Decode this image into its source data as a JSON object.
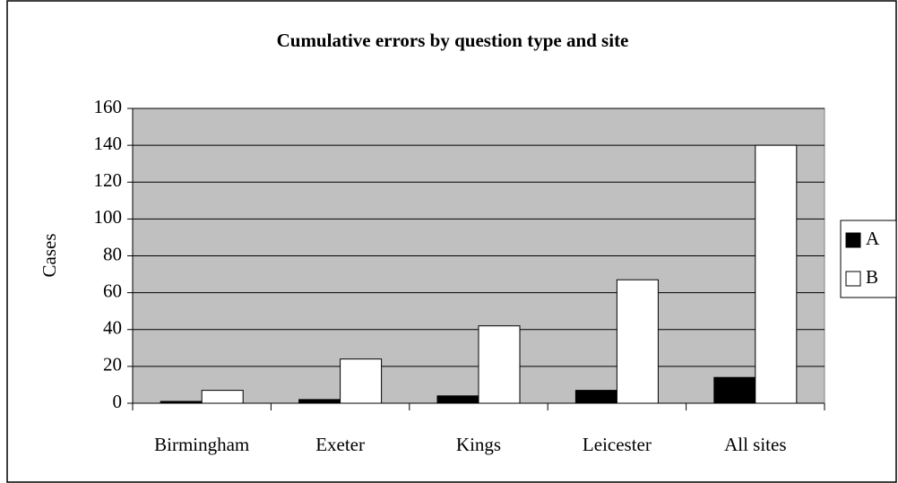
{
  "chart_data": {
    "type": "bar",
    "title": "Cumulative errors by question type and site",
    "ylabel": "Cases",
    "categories": [
      "Birmingham",
      "Exeter",
      "Kings",
      "Leicester",
      "All sites"
    ],
    "series": [
      {
        "name": "A",
        "color": "#000000",
        "values": [
          1,
          2,
          4,
          7,
          14
        ]
      },
      {
        "name": "B",
        "color": "#ffffff",
        "values": [
          7,
          24,
          42,
          67,
          140
        ]
      }
    ],
    "ylim": [
      0,
      160
    ],
    "yticks": [
      0,
      20,
      40,
      60,
      80,
      100,
      120,
      140,
      160
    ],
    "grid": true,
    "legend": "right",
    "plot_background": "#c0c0c0"
  }
}
